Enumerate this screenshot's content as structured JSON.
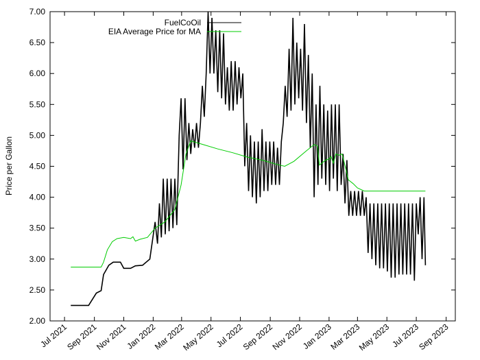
{
  "chart_data": {
    "type": "line",
    "ylabel": "Price per Gallon",
    "ylim": [
      2.0,
      7.0
    ],
    "yticks": [
      "2.00",
      "2.50",
      "3.00",
      "3.50",
      "4.00",
      "4.50",
      "5.00",
      "5.50",
      "6.00",
      "6.50",
      "7.00"
    ],
    "xticks": [
      "Jul 2021",
      "Sep 2021",
      "Nov 2021",
      "Jan 2022",
      "Mar 2022",
      "May 2022",
      "Jul 2022",
      "Sep 2022",
      "Nov 2022",
      "Jan 2023",
      "Mar 2023",
      "May 2023",
      "Jul 2023",
      "Sep 2023"
    ],
    "grid": false,
    "legend_position": "top-right",
    "series": [
      {
        "name": "FuelCoOil",
        "color": "#000000",
        "points": [
          [
            "2021-07-14",
            2.25
          ],
          [
            "2021-08-20",
            2.25
          ],
          [
            "2021-09-05",
            2.45
          ],
          [
            "2021-09-15",
            2.49
          ],
          [
            "2021-09-20",
            2.75
          ],
          [
            "2021-10-01",
            2.9
          ],
          [
            "2021-10-10",
            2.95
          ],
          [
            "2021-10-25",
            2.95
          ],
          [
            "2021-11-01",
            2.85
          ],
          [
            "2021-11-15",
            2.85
          ],
          [
            "2021-11-25",
            2.89
          ],
          [
            "2021-12-10",
            2.9
          ],
          [
            "2021-12-25",
            3.0
          ],
          [
            "2022-01-05",
            3.6
          ],
          [
            "2022-01-10",
            3.25
          ],
          [
            "2022-01-14",
            3.9
          ],
          [
            "2022-01-18",
            3.35
          ],
          [
            "2022-01-22",
            4.3
          ],
          [
            "2022-01-26",
            3.4
          ],
          [
            "2022-01-30",
            4.3
          ],
          [
            "2022-02-03",
            3.45
          ],
          [
            "2022-02-07",
            4.3
          ],
          [
            "2022-02-11",
            3.5
          ],
          [
            "2022-02-15",
            4.3
          ],
          [
            "2022-02-19",
            3.55
          ],
          [
            "2022-02-24",
            5.0
          ],
          [
            "2022-02-28",
            5.6
          ],
          [
            "2022-03-04",
            4.45
          ],
          [
            "2022-03-08",
            5.6
          ],
          [
            "2022-03-12",
            4.6
          ],
          [
            "2022-03-16",
            5.2
          ],
          [
            "2022-03-20",
            4.7
          ],
          [
            "2022-03-24",
            5.1
          ],
          [
            "2022-03-28",
            4.8
          ],
          [
            "2022-04-01",
            5.2
          ],
          [
            "2022-04-05",
            4.8
          ],
          [
            "2022-04-09",
            5.2
          ],
          [
            "2022-04-13",
            5.8
          ],
          [
            "2022-04-17",
            5.3
          ],
          [
            "2022-04-21",
            6.0
          ],
          [
            "2022-04-25",
            7.0
          ],
          [
            "2022-04-29",
            6.0
          ],
          [
            "2022-05-03",
            6.9
          ],
          [
            "2022-05-07",
            6.0
          ],
          [
            "2022-05-11",
            6.7
          ],
          [
            "2022-05-15",
            5.7
          ],
          [
            "2022-05-19",
            6.7
          ],
          [
            "2022-05-23",
            5.6
          ],
          [
            "2022-05-27",
            6.65
          ],
          [
            "2022-05-31",
            5.5
          ],
          [
            "2022-06-04",
            6.1
          ],
          [
            "2022-06-08",
            5.4
          ],
          [
            "2022-06-12",
            6.2
          ],
          [
            "2022-06-16",
            5.4
          ],
          [
            "2022-06-20",
            6.2
          ],
          [
            "2022-06-24",
            5.5
          ],
          [
            "2022-06-28",
            6.1
          ],
          [
            "2022-07-02",
            5.6
          ],
          [
            "2022-07-06",
            6.0
          ],
          [
            "2022-07-10",
            4.5
          ],
          [
            "2022-07-14",
            5.2
          ],
          [
            "2022-07-18",
            4.1
          ],
          [
            "2022-07-22",
            5.0
          ],
          [
            "2022-07-26",
            4.0
          ],
          [
            "2022-07-30",
            4.9
          ],
          [
            "2022-08-03",
            3.9
          ],
          [
            "2022-08-07",
            4.9
          ],
          [
            "2022-08-11",
            4.0
          ],
          [
            "2022-08-15",
            5.1
          ],
          [
            "2022-08-19",
            4.1
          ],
          [
            "2022-08-23",
            4.9
          ],
          [
            "2022-08-27",
            4.1
          ],
          [
            "2022-08-31",
            4.9
          ],
          [
            "2022-09-04",
            4.2
          ],
          [
            "2022-09-08",
            4.9
          ],
          [
            "2022-09-12",
            4.2
          ],
          [
            "2022-09-16",
            4.8
          ],
          [
            "2022-09-20",
            4.2
          ],
          [
            "2022-09-24",
            4.9
          ],
          [
            "2022-09-28",
            5.2
          ],
          [
            "2022-10-02",
            5.8
          ],
          [
            "2022-10-06",
            5.3
          ],
          [
            "2022-10-10",
            6.4
          ],
          [
            "2022-10-14",
            5.4
          ],
          [
            "2022-10-18",
            6.9
          ],
          [
            "2022-10-22",
            5.5
          ],
          [
            "2022-10-26",
            6.5
          ],
          [
            "2022-10-30",
            5.6
          ],
          [
            "2022-11-03",
            6.4
          ],
          [
            "2022-11-07",
            5.4
          ],
          [
            "2022-11-11",
            6.8
          ],
          [
            "2022-11-15",
            5.2
          ],
          [
            "2022-11-19",
            6.3
          ],
          [
            "2022-11-23",
            4.8
          ],
          [
            "2022-11-27",
            6.0
          ],
          [
            "2022-12-01",
            4.0
          ],
          [
            "2022-12-05",
            5.5
          ],
          [
            "2022-12-09",
            4.2
          ],
          [
            "2022-12-13",
            5.8
          ],
          [
            "2022-12-17",
            4.3
          ],
          [
            "2022-12-21",
            5.5
          ],
          [
            "2022-12-25",
            4.2
          ],
          [
            "2022-12-29",
            5.4
          ],
          [
            "2023-01-02",
            4.1
          ],
          [
            "2023-01-06",
            5.5
          ],
          [
            "2023-01-10",
            4.3
          ],
          [
            "2023-01-14",
            5.5
          ],
          [
            "2023-01-18",
            4.1
          ],
          [
            "2023-01-22",
            5.5
          ],
          [
            "2023-01-26",
            4.2
          ],
          [
            "2023-01-30",
            4.7
          ],
          [
            "2023-02-03",
            3.9
          ],
          [
            "2023-02-07",
            4.6
          ],
          [
            "2023-02-11",
            3.7
          ],
          [
            "2023-02-15",
            4.1
          ],
          [
            "2023-02-19",
            3.7
          ],
          [
            "2023-02-23",
            4.1
          ],
          [
            "2023-02-27",
            3.7
          ],
          [
            "2023-03-03",
            4.1
          ],
          [
            "2023-03-07",
            3.7
          ],
          [
            "2023-03-11",
            4.1
          ],
          [
            "2023-03-15",
            3.7
          ],
          [
            "2023-03-19",
            4.0
          ],
          [
            "2023-03-23",
            3.1
          ],
          [
            "2023-03-27",
            3.9
          ],
          [
            "2023-03-31",
            3.0
          ],
          [
            "2023-04-04",
            3.9
          ],
          [
            "2023-04-08",
            2.9
          ],
          [
            "2023-04-12",
            3.9
          ],
          [
            "2023-04-16",
            2.85
          ],
          [
            "2023-04-20",
            3.9
          ],
          [
            "2023-04-24",
            2.85
          ],
          [
            "2023-04-28",
            3.9
          ],
          [
            "2023-05-02",
            2.8
          ],
          [
            "2023-05-06",
            3.9
          ],
          [
            "2023-05-10",
            2.7
          ],
          [
            "2023-05-14",
            3.9
          ],
          [
            "2023-05-18",
            2.7
          ],
          [
            "2023-05-22",
            3.9
          ],
          [
            "2023-05-26",
            2.75
          ],
          [
            "2023-05-30",
            3.9
          ],
          [
            "2023-06-03",
            2.75
          ],
          [
            "2023-06-07",
            3.9
          ],
          [
            "2023-06-11",
            2.75
          ],
          [
            "2023-06-15",
            3.9
          ],
          [
            "2023-06-19",
            2.75
          ],
          [
            "2023-06-23",
            3.9
          ],
          [
            "2023-06-27",
            2.65
          ],
          [
            "2023-07-01",
            3.9
          ],
          [
            "2023-07-05",
            3.4
          ],
          [
            "2023-07-09",
            4.0
          ],
          [
            "2023-07-13",
            3.0
          ],
          [
            "2023-07-17",
            4.0
          ],
          [
            "2023-07-20",
            2.9
          ]
        ]
      },
      {
        "name": "EIA Average Price for MA",
        "color": "#00cc00",
        "points": [
          [
            "2021-07-14",
            2.87
          ],
          [
            "2021-09-15",
            2.87
          ],
          [
            "2021-09-20",
            2.95
          ],
          [
            "2021-09-28",
            3.15
          ],
          [
            "2021-10-08",
            3.28
          ],
          [
            "2021-10-18",
            3.33
          ],
          [
            "2021-11-01",
            3.35
          ],
          [
            "2021-11-15",
            3.33
          ],
          [
            "2021-11-20",
            3.36
          ],
          [
            "2021-11-25",
            3.29
          ],
          [
            "2021-12-05",
            3.32
          ],
          [
            "2021-12-20",
            3.35
          ],
          [
            "2022-01-05",
            3.5
          ],
          [
            "2022-01-25",
            3.6
          ],
          [
            "2022-02-15",
            3.8
          ],
          [
            "2022-02-28",
            4.2
          ],
          [
            "2022-03-10",
            4.7
          ],
          [
            "2022-03-20",
            4.91
          ],
          [
            "2022-04-15",
            4.85
          ],
          [
            "2022-05-15",
            4.78
          ],
          [
            "2022-06-15",
            4.72
          ],
          [
            "2022-07-15",
            4.65
          ],
          [
            "2022-08-15",
            4.6
          ],
          [
            "2022-09-15",
            4.53
          ],
          [
            "2022-10-01",
            4.5
          ],
          [
            "2022-10-20",
            4.58
          ],
          [
            "2022-11-15",
            4.75
          ],
          [
            "2022-12-01",
            4.85
          ],
          [
            "2022-12-08",
            4.83
          ],
          [
            "2022-12-12",
            4.52
          ],
          [
            "2022-12-25",
            4.6
          ],
          [
            "2023-01-01",
            4.62
          ],
          [
            "2023-01-05",
            4.66
          ],
          [
            "2023-01-10",
            4.55
          ],
          [
            "2023-01-15",
            4.7
          ],
          [
            "2023-01-22",
            4.68
          ],
          [
            "2023-01-28",
            4.7
          ],
          [
            "2023-02-05",
            4.45
          ],
          [
            "2023-02-10",
            4.28
          ],
          [
            "2023-02-20",
            4.22
          ],
          [
            "2023-03-01",
            4.15
          ],
          [
            "2023-03-15",
            4.1
          ],
          [
            "2023-04-15",
            4.1
          ],
          [
            "2023-05-15",
            4.1
          ],
          [
            "2023-06-15",
            4.1
          ],
          [
            "2023-07-20",
            4.1
          ]
        ]
      }
    ]
  }
}
